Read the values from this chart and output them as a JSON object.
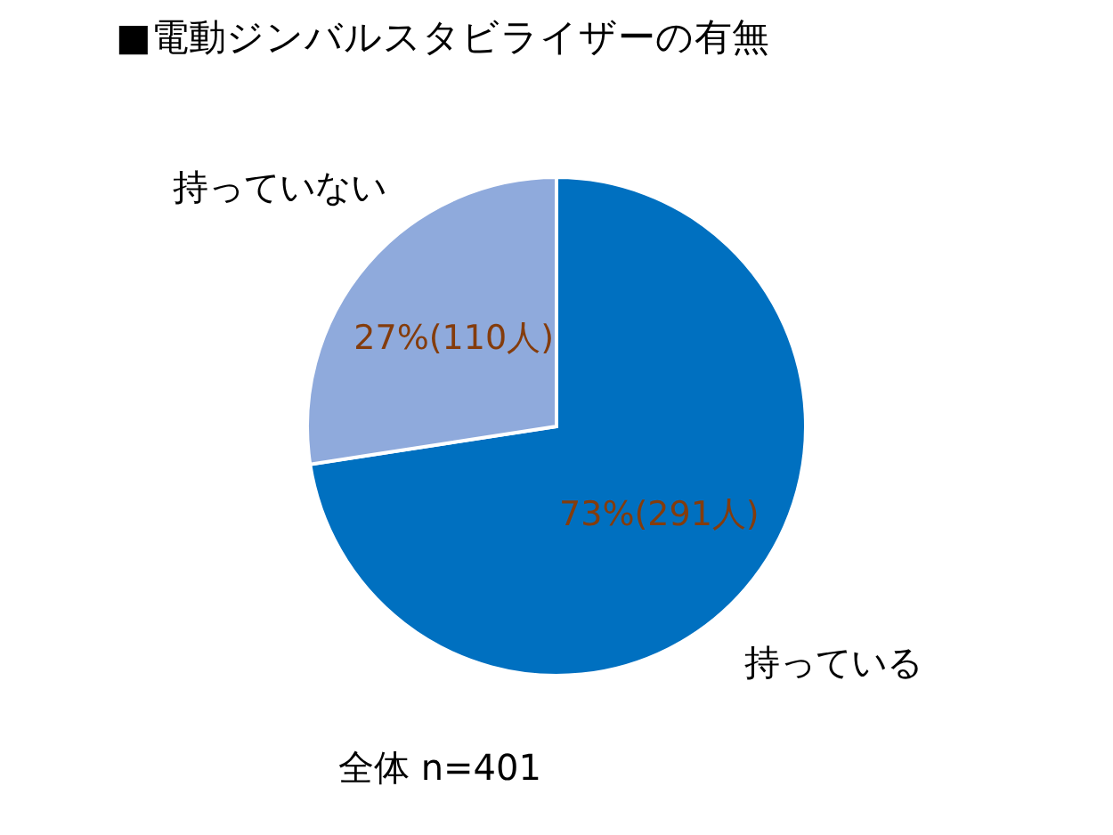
{
  "chart_data": {
    "type": "pie",
    "title": "■電動ジンバルスタビライザーの有無",
    "categories": [
      "持っている",
      "持っていない"
    ],
    "values": [
      291,
      110
    ],
    "colors": [
      "#0070c0",
      "#8faadc"
    ],
    "value_labels": [
      "73%(291人)",
      "27%(110人)"
    ],
    "annotations": [
      "全体 n=401"
    ]
  }
}
